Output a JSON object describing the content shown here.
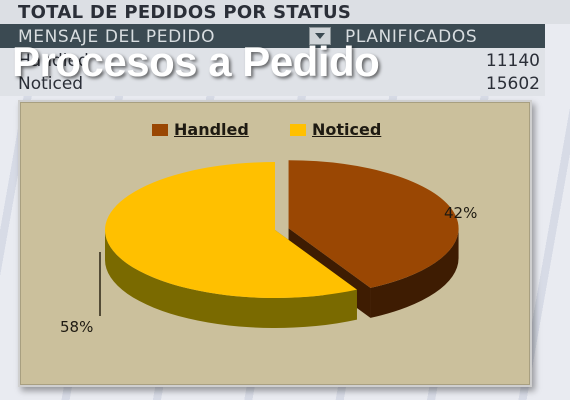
{
  "pivot": {
    "title": "TOTAL DE PEDIDOS POR STATUS",
    "col1": "MENSAJE DEL PEDIDO",
    "col2": "PLANIFICADOS",
    "rows": [
      {
        "label": "Handled",
        "value": "11140"
      },
      {
        "label": "Noticed",
        "value": "15602"
      }
    ]
  },
  "overlay_title": "Procesos a Pedido",
  "chart_data": {
    "type": "pie",
    "title": "",
    "legend": [
      "Handled",
      "Noticed"
    ],
    "legend_position": "top",
    "slices": [
      {
        "name": "Handled",
        "value": 42,
        "label": "42%",
        "color": "#9a4703",
        "side_color": "#3e1c02"
      },
      {
        "name": "Noticed",
        "value": 58,
        "label": "58%",
        "color": "#ffc000",
        "side_color": "#7a6a00"
      }
    ],
    "exploded": "Handled",
    "style": "3d"
  },
  "colors": {
    "panel_bg": "#cbc09c",
    "header_dark": "#3b4a52"
  }
}
